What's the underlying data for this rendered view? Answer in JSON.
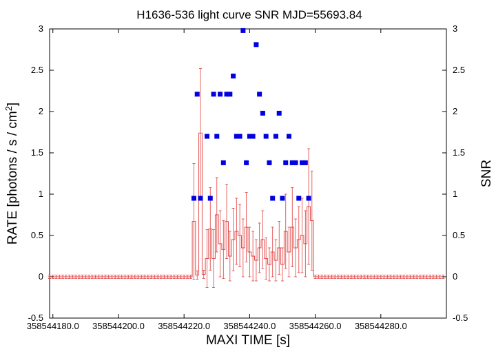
{
  "chart_data": {
    "type": "scatter",
    "title": "H1636-536 light curve  SNR MJD=55693.84",
    "xlabel": "MAXI TIME [s]",
    "ylabel_left_prefix": "RATE [photons / s / cm",
    "ylabel_left_sup": "2",
    "ylabel_left_suffix": "]",
    "ylabel_right": "SNR",
    "xlim": [
      358544179,
      358544300
    ],
    "ylim": [
      -0.5,
      3
    ],
    "x_ticks": [
      358544180,
      358544200,
      358544220,
      358544240,
      358544260,
      358544280
    ],
    "x_tick_labels": [
      "358544180.0",
      "358544200.0",
      "358544220.0",
      "358544240.0",
      "358544260.0",
      "358544280.0"
    ],
    "y_ticks_left": [
      "-0.5",
      "0",
      "0.5",
      "1",
      "1.5",
      "2",
      "2.5",
      "3"
    ],
    "y_ticks_right": [
      "-0.5",
      "0",
      "0.5",
      "1",
      "1.5",
      "2",
      "2.5",
      "3"
    ],
    "grid": false,
    "colors": {
      "rate": "#e03c3c",
      "snr": "#0000e0",
      "axes": "#000000"
    },
    "series": [
      {
        "kind": "rate_step",
        "x": [
          358544179,
          358544180,
          358544181,
          358544182,
          358544183,
          358544184,
          358544185,
          358544186,
          358544187,
          358544188,
          358544189,
          358544190,
          358544191,
          358544192,
          358544193,
          358544194,
          358544195,
          358544196,
          358544197,
          358544198,
          358544199,
          358544200,
          358544201,
          358544202,
          358544203,
          358544204,
          358544205,
          358544206,
          358544207,
          358544208,
          358544209,
          358544210,
          358544211,
          358544212,
          358544213,
          358544214,
          358544215,
          358544216,
          358544217,
          358544218,
          358544219,
          358544220,
          358544221,
          358544222,
          358544223,
          358544224,
          358544225,
          358544226,
          358544227,
          358544228,
          358544229,
          358544230,
          358544231,
          358544232,
          358544233,
          358544234,
          358544235,
          358544236,
          358544237,
          358544238,
          358544239,
          358544240,
          358544241,
          358544242,
          358544243,
          358544244,
          358544245,
          358544246,
          358544247,
          358544248,
          358544249,
          358544250,
          358544251,
          358544252,
          358544253,
          358544254,
          358544255,
          358544256,
          358544257,
          358544258,
          358544259,
          358544260,
          358544261,
          358544262,
          358544263,
          358544264,
          358544265,
          358544266,
          358544267,
          358544268,
          358544269,
          358544270,
          358544271,
          358544272,
          358544273,
          358544274,
          358544275,
          358544276,
          358544277,
          358544278,
          358544279,
          358544280,
          358544281,
          358544282,
          358544283,
          358544284,
          358544285,
          358544286,
          358544287,
          358544288,
          358544289,
          358544290,
          358544291,
          358544292,
          358544293,
          358544294,
          358544295,
          358544296,
          358544297,
          358544298,
          358544299
        ],
        "y": [
          0,
          0,
          0,
          0,
          0,
          0,
          0,
          0,
          0,
          0,
          0,
          0,
          0,
          0,
          0,
          0,
          0,
          0,
          0,
          0,
          0,
          0,
          0,
          0,
          0,
          0,
          0,
          0,
          0,
          0,
          0,
          0,
          0,
          0,
          0,
          0,
          0,
          0,
          0,
          0,
          0,
          0,
          0,
          0,
          0.67,
          0.02,
          1.74,
          0.03,
          0.22,
          0.58,
          0.22,
          0.75,
          0.4,
          0.33,
          0.67,
          0.25,
          0.45,
          0.55,
          0.5,
          0.35,
          0.6,
          0.3,
          0.25,
          0.2,
          0.35,
          0.45,
          0.22,
          0.15,
          0.3,
          0.2,
          0.35,
          0.15,
          0.55,
          0.3,
          0.6,
          0.35,
          0.45,
          0.5,
          0.4,
          0.85,
          0.68,
          0,
          0,
          0,
          0,
          0,
          0,
          0,
          0,
          0,
          0,
          0,
          0,
          0,
          0,
          0,
          0,
          0,
          0,
          0,
          0,
          0,
          0,
          0,
          0,
          0,
          0,
          0,
          0,
          0,
          0,
          0,
          0,
          0,
          0,
          0,
          0,
          0,
          0,
          0,
          0
        ],
        "err": [
          0.02,
          0.02,
          0.02,
          0.02,
          0.02,
          0.02,
          0.02,
          0.02,
          0.02,
          0.02,
          0.02,
          0.02,
          0.02,
          0.02,
          0.02,
          0.02,
          0.02,
          0.02,
          0.02,
          0.02,
          0.02,
          0.02,
          0.02,
          0.02,
          0.02,
          0.02,
          0.02,
          0.02,
          0.02,
          0.02,
          0.02,
          0.02,
          0.02,
          0.02,
          0.02,
          0.02,
          0.02,
          0.02,
          0.02,
          0.02,
          0.02,
          0.02,
          0.02,
          0.02,
          0.7,
          0.05,
          0.78,
          0.05,
          0.35,
          0.5,
          0.35,
          0.45,
          0.4,
          0.35,
          0.45,
          0.3,
          0.38,
          0.4,
          0.38,
          0.35,
          0.42,
          0.3,
          0.3,
          0.25,
          0.3,
          0.35,
          0.25,
          0.2,
          0.3,
          0.25,
          0.32,
          0.2,
          0.45,
          0.3,
          0.48,
          0.35,
          0.4,
          0.45,
          0.4,
          0.7,
          0.6,
          0.02,
          0.02,
          0.02,
          0.02,
          0.02,
          0.02,
          0.02,
          0.02,
          0.02,
          0.02,
          0.02,
          0.02,
          0.02,
          0.02,
          0.02,
          0.02,
          0.02,
          0.02,
          0.02,
          0.02,
          0.02,
          0.02,
          0.02,
          0.02,
          0.02,
          0.02,
          0.02,
          0.02,
          0.02,
          0.02,
          0.02,
          0.02,
          0.02,
          0.02,
          0.02,
          0.02,
          0.02,
          0.02,
          0.02,
          0.02
        ]
      },
      {
        "kind": "snr_points",
        "x": [
          358544223,
          358544224,
          358544225,
          358544227,
          358544228,
          358544229,
          358544230,
          358544231,
          358544232,
          358544233,
          358544234,
          358544235,
          358544236,
          358544237,
          358544238,
          358544239,
          358544240,
          358544241,
          358544242,
          358544243,
          358544244,
          358544245,
          358544246,
          358544247,
          358544248,
          358544249,
          358544250,
          358544251,
          358544252,
          358544253,
          358544254,
          358544255,
          358544256,
          358544257,
          358544258
        ],
        "y": [
          0.95,
          2.21,
          0.95,
          1.7,
          0.95,
          2.21,
          1.7,
          2.21,
          1.38,
          2.21,
          2.21,
          2.43,
          1.7,
          1.7,
          2.98,
          1.38,
          1.7,
          1.7,
          2.81,
          2.21,
          1.98,
          1.7,
          1.38,
          0.95,
          1.7,
          1.98,
          0.95,
          1.38,
          1.7,
          1.38,
          1.38,
          0.95,
          1.38,
          1.38,
          0.95
        ]
      }
    ]
  }
}
